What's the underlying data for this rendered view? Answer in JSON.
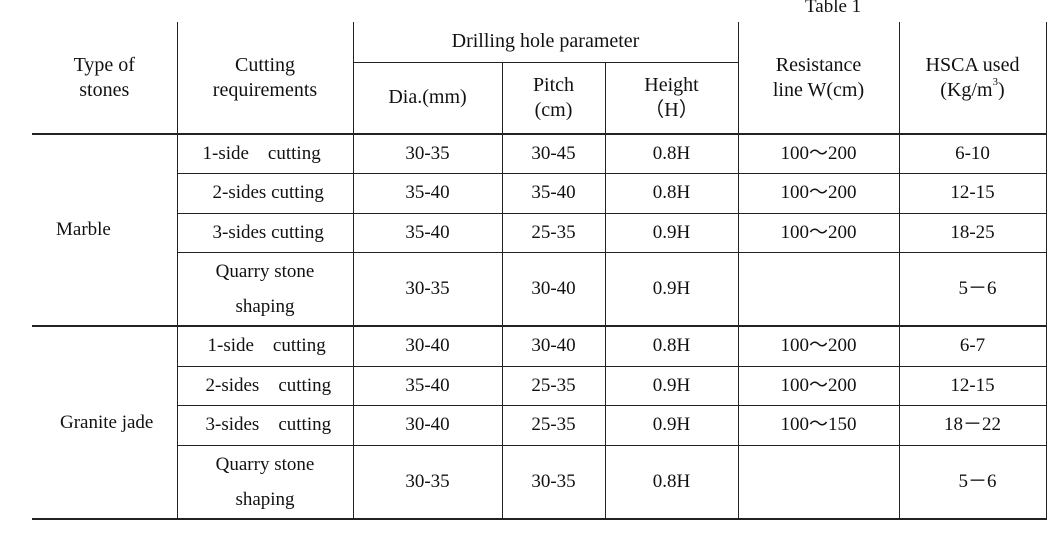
{
  "caption": "Table 1",
  "header": {
    "type_of_stones": "Type of stones",
    "cutting_requirements": "Cutting requirements",
    "drilling_group": "Drilling hole parameter",
    "dia": "Dia.(mm)",
    "pitch": "Pitch (cm)",
    "height": "Height （H）",
    "resistance": "Resistance line W(cm)",
    "hsca_prefix": "HSCA used (Kg/m",
    "hsca_sup": "3",
    "hsca_suffix": ")"
  },
  "groups": [
    {
      "stone": "Marble",
      "rows": [
        {
          "req": "1-side　cutting",
          "dia": "30-35",
          "pitch": "30-45",
          "height": "0.8H",
          "resistance": "100～200",
          "hsca": "6-10"
        },
        {
          "req": "2-sides cutting",
          "dia": "35-40",
          "pitch": "35-40",
          "height": "0.8H",
          "resistance": "100～200",
          "hsca": "12-15"
        },
        {
          "req": "3-sides cutting",
          "dia": "35-40",
          "pitch": "25-35",
          "height": "0.9H",
          "resistance": "100～200",
          "hsca": "18-25"
        },
        {
          "req": "Quarry stone shaping",
          "dia": "30-35",
          "pitch": "30-40",
          "height": "0.9H",
          "resistance": "",
          "hsca": "5－6"
        }
      ]
    },
    {
      "stone": "Granite jade",
      "rows": [
        {
          "req": "1-side　cutting",
          "dia": "30-40",
          "pitch": "30-40",
          "height": "0.8H",
          "resistance": "100～200",
          "hsca": "6-7"
        },
        {
          "req": "2-sides　cutting",
          "dia": "35-40",
          "pitch": "25-35",
          "height": "0.9H",
          "resistance": "100～200",
          "hsca": "12-15"
        },
        {
          "req": "3-sides　cutting",
          "dia": "30-40",
          "pitch": "25-35",
          "height": "0.9H",
          "resistance": "100～150",
          "hsca": "18－22"
        },
        {
          "req": "Quarry stone shaping",
          "dia": "30-35",
          "pitch": "30-35",
          "height": "0.8H",
          "resistance": "",
          "hsca": "5－6"
        }
      ]
    }
  ]
}
